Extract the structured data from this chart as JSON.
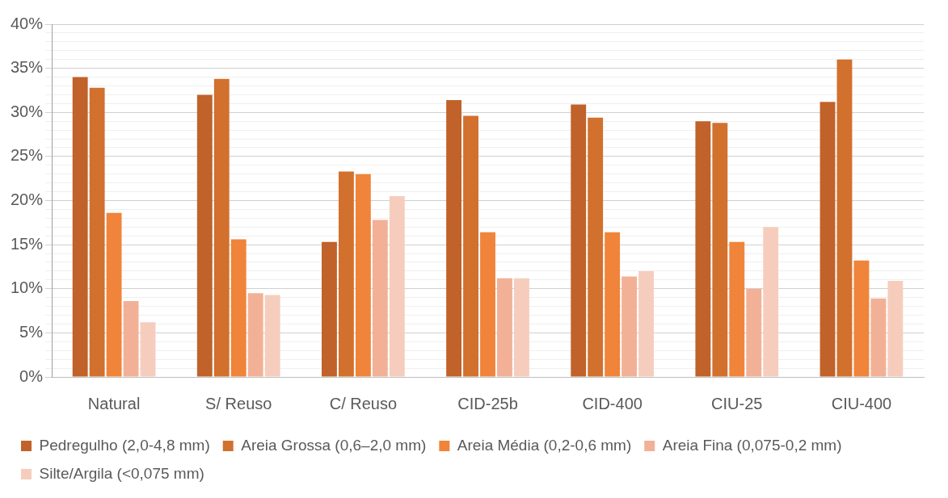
{
  "chart_data": {
    "type": "bar",
    "categories": [
      "Natural",
      "S/ Reuso",
      "C/ Reuso",
      "CID-25b",
      "CID-400",
      "CIU-25",
      "CIU-400"
    ],
    "series": [
      {
        "name": "Pedregulho (2,0-4,8 mm)",
        "color": "#c0622a",
        "values": [
          34,
          32,
          15.3,
          31.4,
          30.9,
          29,
          31.2
        ]
      },
      {
        "name": "Areia Grossa (0,6–2,0 mm)",
        "color": "#d2702e",
        "values": [
          32.8,
          33.8,
          23.3,
          29.6,
          29.4,
          28.8,
          36
        ]
      },
      {
        "name": "Areia Média (0,2-0,6 mm)",
        "color": "#f0843a",
        "values": [
          18.6,
          15.6,
          23,
          16.4,
          16.4,
          15.3,
          13.2
        ]
      },
      {
        "name": "Areia Fina (0,075-0,2 mm)",
        "color": "#f2b196",
        "values": [
          8.6,
          9.5,
          17.8,
          11.2,
          11.4,
          10,
          8.9
        ]
      },
      {
        "name": "Silte/Argila (<0,075 mm)",
        "color": "#f6cdbd",
        "values": [
          6.2,
          9.3,
          20.5,
          11.2,
          12,
          17,
          10.9
        ]
      }
    ],
    "ylim": [
      0,
      40
    ],
    "yticks": [
      {
        "value": 0,
        "label": "0%"
      },
      {
        "value": 1,
        "label": null
      },
      {
        "value": 2,
        "label": null
      },
      {
        "value": 3,
        "label": null
      },
      {
        "value": 4,
        "label": null
      },
      {
        "value": 5,
        "label": "5%"
      },
      {
        "value": 6,
        "label": null
      },
      {
        "value": 7,
        "label": null
      },
      {
        "value": 8,
        "label": null
      },
      {
        "value": 9,
        "label": null
      },
      {
        "value": 10,
        "label": "10%"
      },
      {
        "value": 11,
        "label": null
      },
      {
        "value": 12,
        "label": null
      },
      {
        "value": 13,
        "label": null
      },
      {
        "value": 14,
        "label": null
      },
      {
        "value": 15,
        "label": "15%"
      },
      {
        "value": 16,
        "label": null
      },
      {
        "value": 17,
        "label": null
      },
      {
        "value": 18,
        "label": null
      },
      {
        "value": 19,
        "label": null
      },
      {
        "value": 20,
        "label": "20%"
      },
      {
        "value": 21,
        "label": null
      },
      {
        "value": 22,
        "label": null
      },
      {
        "value": 23,
        "label": null
      },
      {
        "value": 24,
        "label": null
      },
      {
        "value": 25,
        "label": "25%"
      },
      {
        "value": 26,
        "label": null
      },
      {
        "value": 27,
        "label": null
      },
      {
        "value": 28,
        "label": null
      },
      {
        "value": 29,
        "label": null
      },
      {
        "value": 30,
        "label": "30%"
      },
      {
        "value": 31,
        "label": null
      },
      {
        "value": 32,
        "label": null
      },
      {
        "value": 33,
        "label": null
      },
      {
        "value": 34,
        "label": null
      },
      {
        "value": 35,
        "label": "35%"
      },
      {
        "value": 36,
        "label": null
      },
      {
        "value": 37,
        "label": null
      },
      {
        "value": 38,
        "label": null
      },
      {
        "value": 39,
        "label": null
      },
      {
        "value": 40,
        "label": "40%"
      }
    ],
    "grid": true,
    "legend": "bottom"
  }
}
